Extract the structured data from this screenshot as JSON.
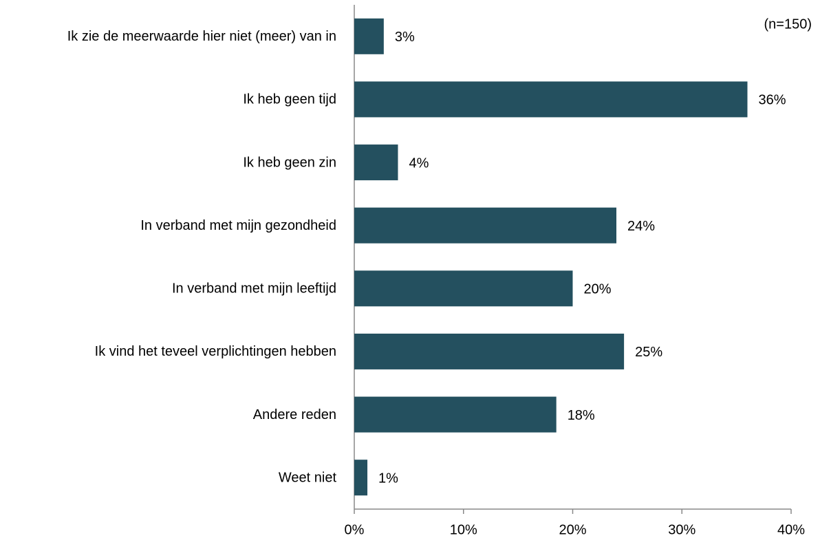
{
  "chart_data": {
    "type": "bar",
    "orientation": "horizontal",
    "annotation": "(n=150)",
    "categories": [
      "Ik zie de meerwaarde hier niet (meer) van in",
      "Ik heb geen tijd",
      "Ik heb geen zin",
      "In verband met mijn gezondheid",
      "In verband met mijn leeftijd",
      "Ik vind het teveel verplichtingen hebben",
      "Andere reden",
      "Weet niet"
    ],
    "values": [
      2.7,
      36.0,
      4.0,
      24.0,
      20.0,
      24.7,
      18.5,
      1.2
    ],
    "value_labels": [
      "3%",
      "36%",
      "4%",
      "24%",
      "20%",
      "25%",
      "18%",
      "1%"
    ],
    "color": "#24505f",
    "xlim": [
      0,
      40
    ],
    "xticks": [
      {
        "value": 0,
        "label": "0%"
      },
      {
        "value": 10,
        "label": "10%"
      },
      {
        "value": 20,
        "label": "20%"
      },
      {
        "value": 30,
        "label": "30%"
      },
      {
        "value": 40,
        "label": "40%"
      }
    ]
  }
}
